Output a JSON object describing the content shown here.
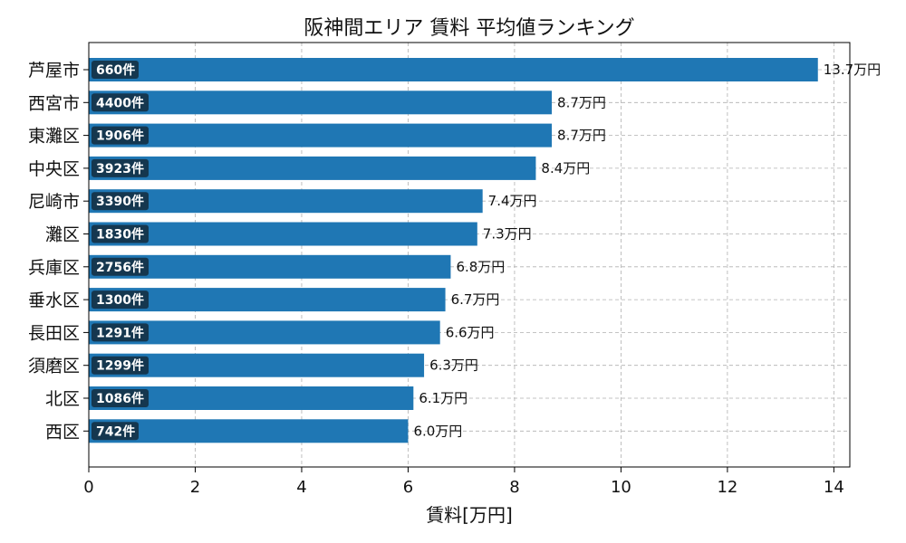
{
  "chart_data": {
    "type": "bar",
    "orientation": "horizontal",
    "title": "阪神間エリア 賃料 平均値ランキング",
    "xlabel": "賃料[万円]",
    "ylabel": "",
    "xlim": [
      0,
      14.3
    ],
    "x_ticks": [
      0,
      2,
      4,
      6,
      8,
      10,
      12,
      14
    ],
    "grid": true,
    "bar_color": "#1f77b4",
    "count_box_color": "#15374f",
    "categories": [
      "芦屋市",
      "西宮市",
      "東灘区",
      "中央区",
      "尼崎市",
      "灘区",
      "兵庫区",
      "垂水区",
      "長田区",
      "須磨区",
      "北区",
      "西区"
    ],
    "values": [
      13.7,
      8.7,
      8.7,
      8.4,
      7.4,
      7.3,
      6.8,
      6.7,
      6.6,
      6.3,
      6.1,
      6.0
    ],
    "value_labels": [
      "13.7万円",
      "8.7万円",
      "8.7万円",
      "8.4万円",
      "7.4万円",
      "7.3万円",
      "6.8万円",
      "6.7万円",
      "6.6万円",
      "6.3万円",
      "6.1万円",
      "6.0万円"
    ],
    "count_labels": [
      "660件",
      "4400件",
      "1906件",
      "3923件",
      "3390件",
      "1830件",
      "2756件",
      "1300件",
      "1291件",
      "1299件",
      "1086件",
      "742件"
    ]
  }
}
